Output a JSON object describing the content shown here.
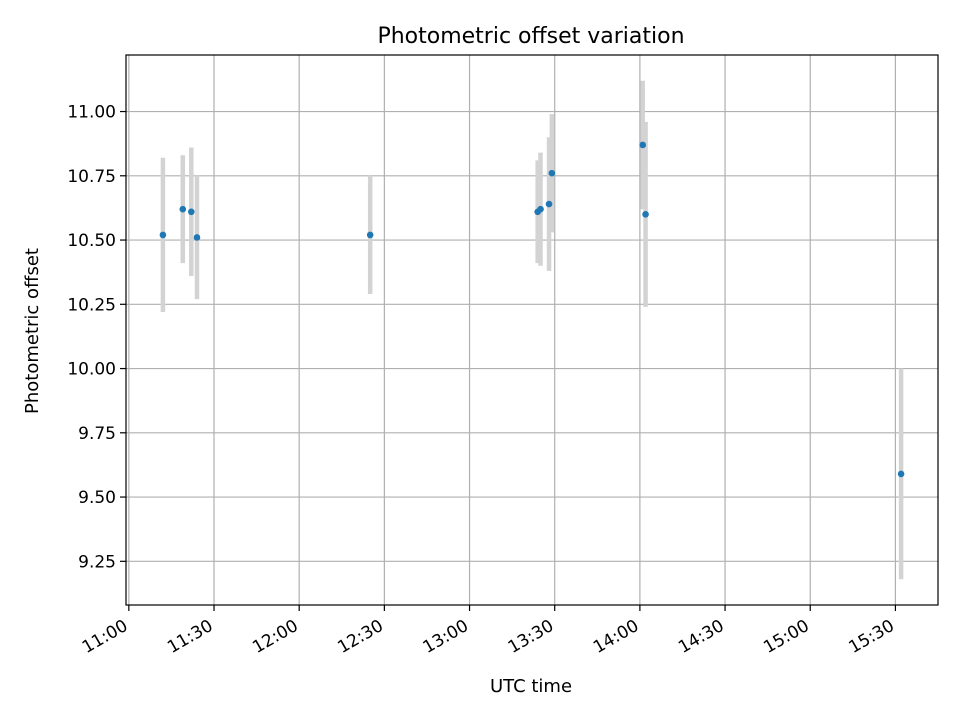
{
  "chart_data": {
    "type": "scatter",
    "title": "Photometric offset variation",
    "xlabel": "UTC time",
    "ylabel": "Photometric offset",
    "x_axis": {
      "type": "time",
      "range": [
        "10:59",
        "15:45"
      ],
      "ticks": [
        "11:00",
        "11:30",
        "12:00",
        "12:30",
        "13:00",
        "13:30",
        "14:00",
        "14:30",
        "15:00",
        "15:30"
      ]
    },
    "y_axis": {
      "range": [
        9.08,
        11.22
      ],
      "ticks": [
        "9.25",
        "9.50",
        "9.75",
        "10.00",
        "10.25",
        "10.50",
        "10.75",
        "11.00"
      ]
    },
    "grid": true,
    "colors": {
      "point": "#1f77b4",
      "errorbar": "#d3d3d3",
      "grid": "#b0b0b0"
    },
    "points": [
      {
        "time": "11:12",
        "value": 10.52,
        "err": 0.3
      },
      {
        "time": "11:19",
        "value": 10.62,
        "err": 0.21
      },
      {
        "time": "11:22",
        "value": 10.61,
        "err": 0.25
      },
      {
        "time": "11:24",
        "value": 10.51,
        "err": 0.24
      },
      {
        "time": "12:25",
        "value": 10.52,
        "err": 0.23
      },
      {
        "time": "13:24",
        "value": 10.61,
        "err": 0.2
      },
      {
        "time": "13:25",
        "value": 10.62,
        "err": 0.22
      },
      {
        "time": "13:28",
        "value": 10.64,
        "err": 0.26
      },
      {
        "time": "13:29",
        "value": 10.76,
        "err": 0.23
      },
      {
        "time": "14:01",
        "value": 10.87,
        "err": 0.25
      },
      {
        "time": "14:02",
        "value": 10.6,
        "err": 0.36
      },
      {
        "time": "15:32",
        "value": 9.59,
        "err": 0.41
      }
    ]
  }
}
